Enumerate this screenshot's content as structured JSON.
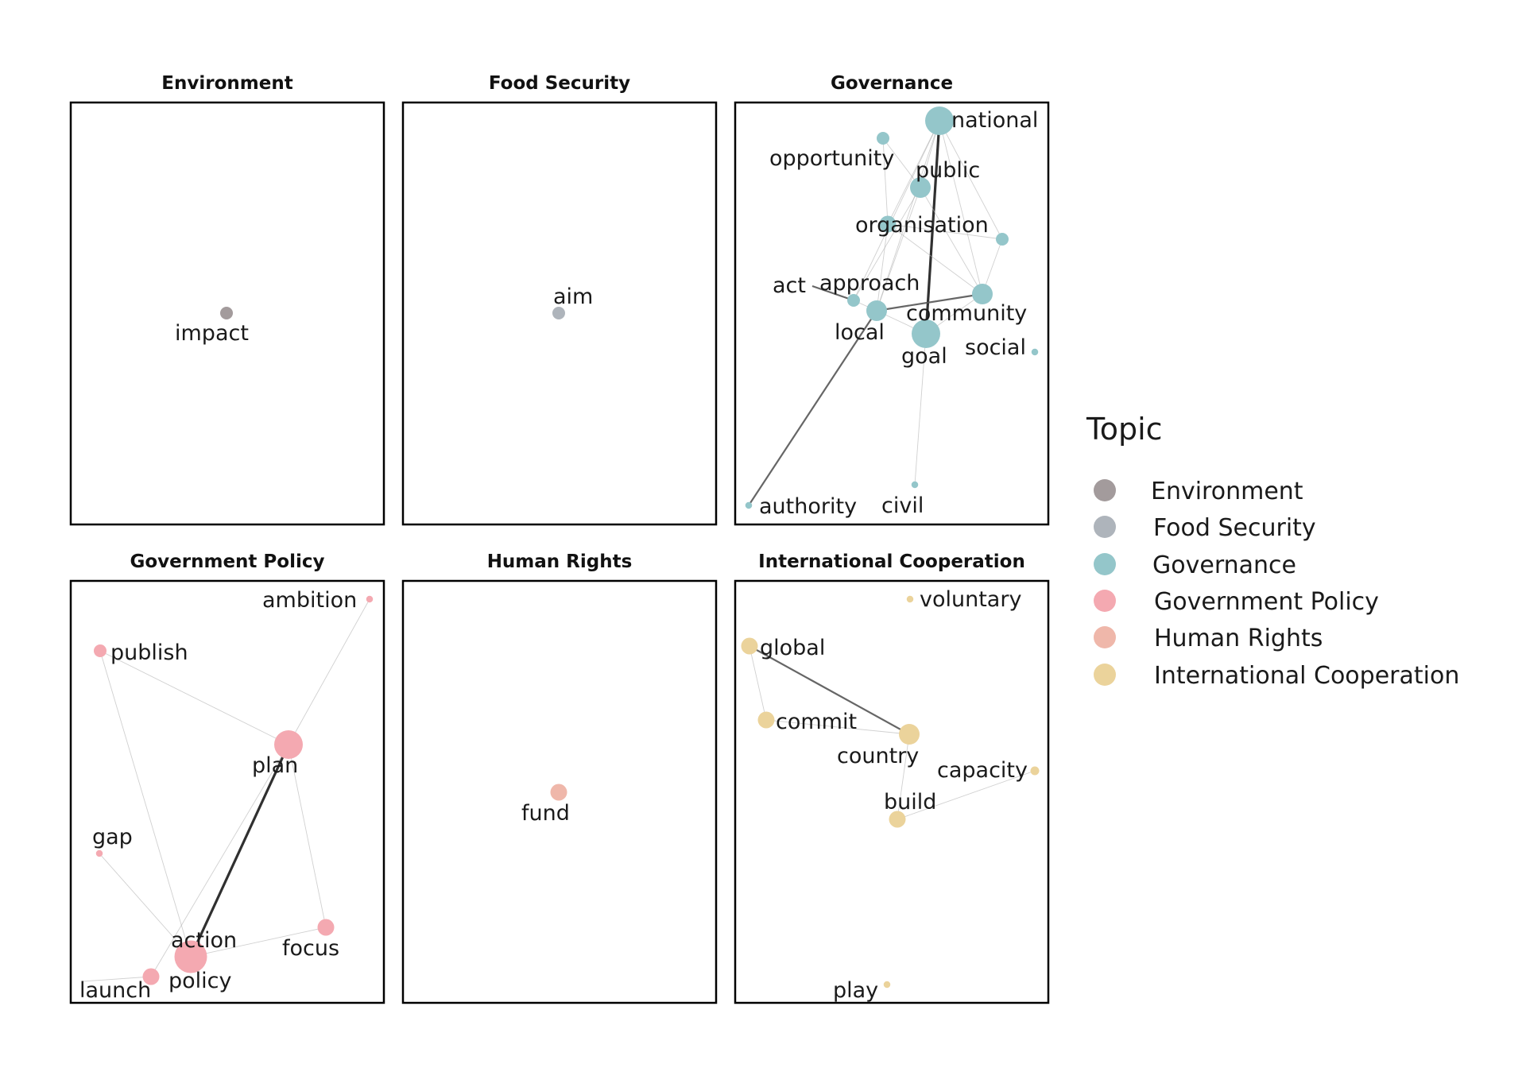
{
  "legend": {
    "title": "Topic",
    "items": [
      {
        "label": "Environment",
        "color": "#a39b9c"
      },
      {
        "label": "Food Security",
        "color": "#aeb4bb"
      },
      {
        "label": "Governance",
        "color": "#94c6ca"
      },
      {
        "label": "Government Policy",
        "color": "#f4a9b1"
      },
      {
        "label": "Human Rights",
        "color": "#efb7aa"
      },
      {
        "label": "International Cooperation",
        "color": "#ebd39b"
      }
    ]
  },
  "panels": [
    {
      "title": "Environment",
      "color": "#a39b9c",
      "nodes": [
        {
          "id": "impact",
          "label": "impact",
          "weight": 2
        }
      ],
      "edges": []
    },
    {
      "title": "Food Security",
      "color": "#aeb4bb",
      "nodes": [
        {
          "id": "aim",
          "label": "aim",
          "weight": 2
        }
      ],
      "edges": []
    },
    {
      "title": "Governance",
      "color": "#94c6ca",
      "nodes": [
        {
          "id": "national",
          "label": "national",
          "weight": 6
        },
        {
          "id": "opportunity",
          "label": "opportunity",
          "weight": 2
        },
        {
          "id": "public",
          "label": "public",
          "weight": 4
        },
        {
          "id": "organisation",
          "label": "organisation",
          "weight": 3
        },
        {
          "id": "unnamed_right",
          "label": "",
          "weight": 2
        },
        {
          "id": "act",
          "label": "act",
          "weight": 0
        },
        {
          "id": "approach",
          "label": "approach",
          "weight": 2
        },
        {
          "id": "community",
          "label": "community",
          "weight": 4
        },
        {
          "id": "local",
          "label": "local",
          "weight": 4
        },
        {
          "id": "goal",
          "label": "goal",
          "weight": 6
        },
        {
          "id": "social",
          "label": "social",
          "weight": 0.5
        },
        {
          "id": "authority",
          "label": "authority",
          "weight": 0.5
        },
        {
          "id": "civil",
          "label": "civil",
          "weight": 0.5
        }
      ],
      "edges": [
        {
          "source": "national",
          "target": "goal",
          "weight": 5
        },
        {
          "source": "local",
          "target": "authority",
          "weight": 4
        },
        {
          "source": "local",
          "target": "community",
          "weight": 4
        },
        {
          "source": "act",
          "target": "approach",
          "weight": 3
        },
        {
          "source": "national",
          "target": "public",
          "weight": 1
        },
        {
          "source": "national",
          "target": "organisation",
          "weight": 1
        },
        {
          "source": "national",
          "target": "local",
          "weight": 1
        },
        {
          "source": "national",
          "target": "approach",
          "weight": 1
        },
        {
          "source": "national",
          "target": "unnamed_right",
          "weight": 1
        },
        {
          "source": "national",
          "target": "community",
          "weight": 1
        },
        {
          "source": "opportunity",
          "target": "public",
          "weight": 1
        },
        {
          "source": "opportunity",
          "target": "organisation",
          "weight": 1
        },
        {
          "source": "public",
          "target": "local",
          "weight": 1
        },
        {
          "source": "public",
          "target": "community",
          "weight": 1
        },
        {
          "source": "public",
          "target": "approach",
          "weight": 1
        },
        {
          "source": "organisation",
          "target": "community",
          "weight": 1
        },
        {
          "source": "organisation",
          "target": "local",
          "weight": 1
        },
        {
          "source": "unnamed_right",
          "target": "community",
          "weight": 1
        },
        {
          "source": "unnamed_right",
          "target": "organisation",
          "weight": 1
        },
        {
          "source": "community",
          "target": "goal",
          "weight": 1
        },
        {
          "source": "local",
          "target": "goal",
          "weight": 1
        },
        {
          "source": "approach",
          "target": "local",
          "weight": 1
        },
        {
          "source": "goal",
          "target": "civil",
          "weight": 1
        }
      ]
    },
    {
      "title": "Government Policy",
      "color": "#f4a9b1",
      "nodes": [
        {
          "id": "ambition",
          "label": "ambition",
          "weight": 0.5
        },
        {
          "id": "publish",
          "label": "publish",
          "weight": 2
        },
        {
          "id": "plan",
          "label": "plan",
          "weight": 6
        },
        {
          "id": "gap",
          "label": "gap",
          "weight": 0.5
        },
        {
          "id": "action",
          "label": "action",
          "weight": 7
        },
        {
          "id": "focus",
          "label": "focus",
          "weight": 3
        },
        {
          "id": "policy",
          "label": "policy",
          "weight": 3
        },
        {
          "id": "launch",
          "label": "launch",
          "weight": 0
        }
      ],
      "edges": [
        {
          "source": "plan",
          "target": "action",
          "weight": 6
        },
        {
          "source": "publish",
          "target": "plan",
          "weight": 1
        },
        {
          "source": "publish",
          "target": "action",
          "weight": 1
        },
        {
          "source": "ambition",
          "target": "plan",
          "weight": 1
        },
        {
          "source": "plan",
          "target": "focus",
          "weight": 1
        },
        {
          "source": "gap",
          "target": "action",
          "weight": 1
        },
        {
          "source": "action",
          "target": "focus",
          "weight": 1
        },
        {
          "source": "policy",
          "target": "plan",
          "weight": 1
        },
        {
          "source": "launch",
          "target": "policy",
          "weight": 1
        }
      ]
    },
    {
      "title": "Human Rights",
      "color": "#efb7aa",
      "nodes": [
        {
          "id": "fund",
          "label": "fund",
          "weight": 3
        }
      ],
      "edges": []
    },
    {
      "title": "International Cooperation",
      "color": "#ebd39b",
      "nodes": [
        {
          "id": "voluntary",
          "label": "voluntary",
          "weight": 0.5
        },
        {
          "id": "global",
          "label": "global",
          "weight": 3
        },
        {
          "id": "commit",
          "label": "commit",
          "weight": 3
        },
        {
          "id": "country",
          "label": "country",
          "weight": 4
        },
        {
          "id": "capacity",
          "label": "capacity",
          "weight": 1
        },
        {
          "id": "build",
          "label": "build",
          "weight": 3
        },
        {
          "id": "play",
          "label": "play",
          "weight": 0.5
        }
      ],
      "edges": [
        {
          "source": "global",
          "target": "country",
          "weight": 4
        },
        {
          "source": "global",
          "target": "commit",
          "weight": 1
        },
        {
          "source": "commit",
          "target": "country",
          "weight": 1
        },
        {
          "source": "country",
          "target": "build",
          "weight": 1
        },
        {
          "source": "build",
          "target": "capacity",
          "weight": 1
        }
      ]
    }
  ]
}
